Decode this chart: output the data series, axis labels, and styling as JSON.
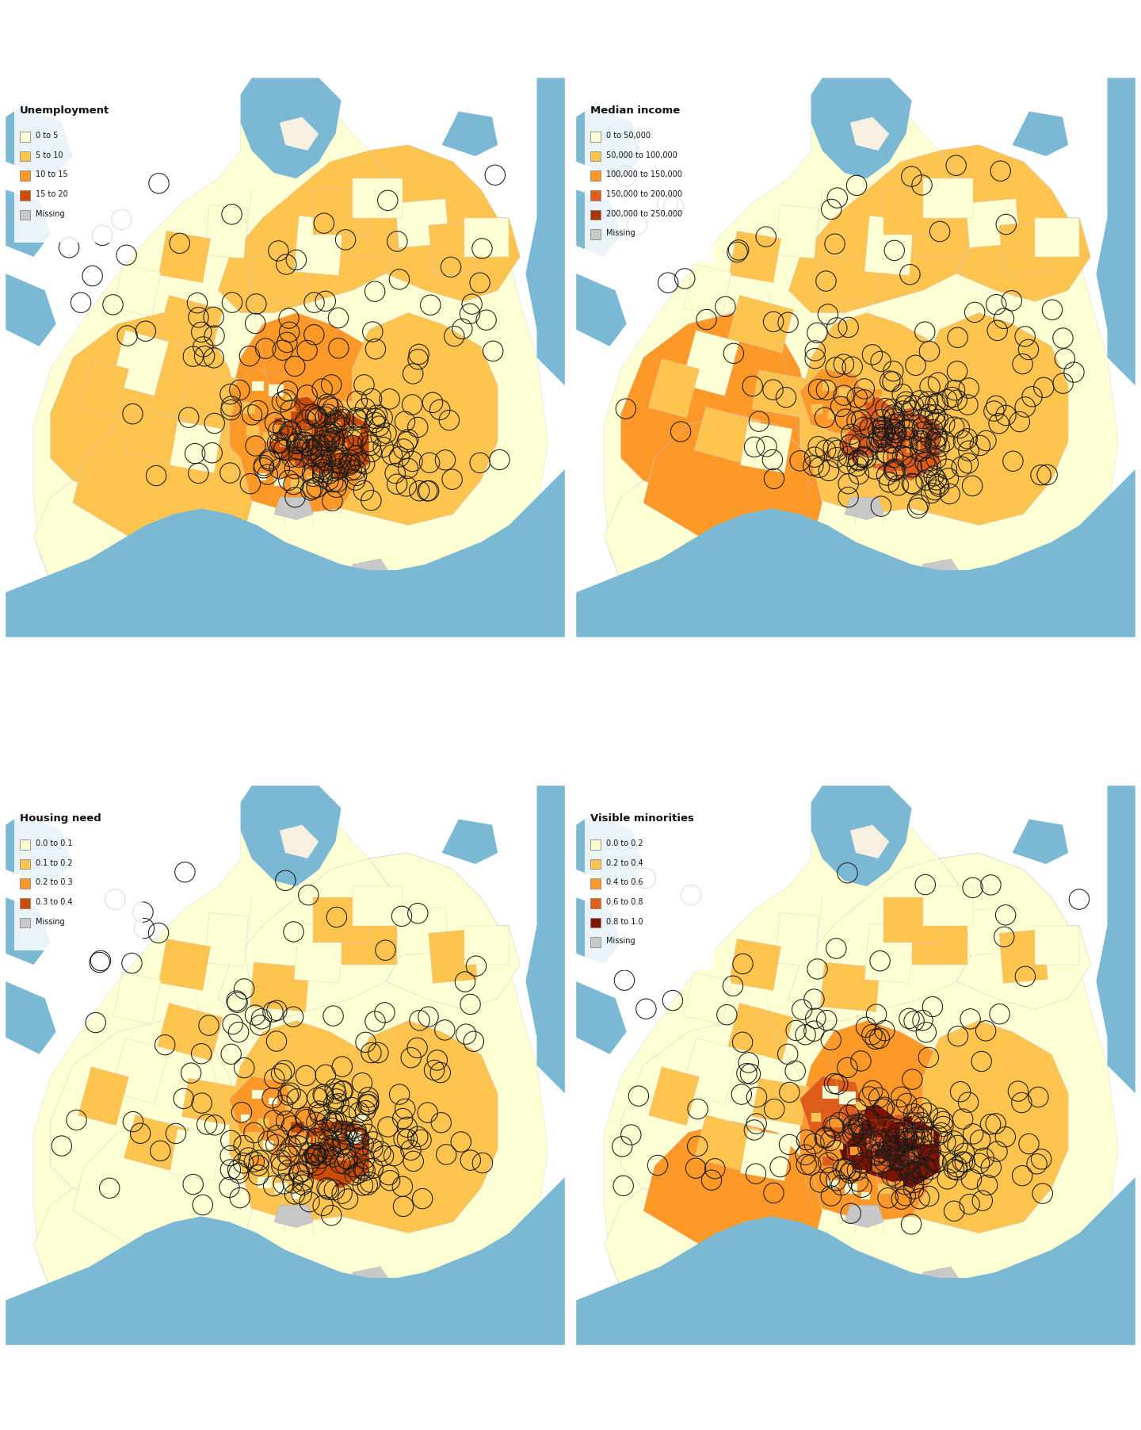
{
  "figsize": [
    14.4,
    18.04
  ],
  "dpi": 100,
  "background_color": "#ffffff",
  "water_color": "#7ab8d4",
  "outer_land_color": "#fffff0",
  "subplots": [
    {
      "legend_title": "Unemployment",
      "legend_labels": [
        "0 to 5",
        "5 to 10",
        "10 to 15",
        "15 to 20",
        "Missing"
      ],
      "legend_colors": [
        "#ffffd4",
        "#fec44f",
        "#fe9929",
        "#cc4c02",
        "#c8c8c8"
      ],
      "data_colors": [
        "#ffffd4",
        "#fec44f",
        "#fe9929",
        "#cc4c02"
      ],
      "region_scheme": "unemployment"
    },
    {
      "legend_title": "Median income",
      "legend_labels": [
        "0 to 50,000",
        "50,000 to 100,000",
        "100,000 to 150,000",
        "150,000 to 200,000",
        "200,000 to 250,000",
        "Missing"
      ],
      "legend_colors": [
        "#ffffd4",
        "#fec44f",
        "#fe9929",
        "#e05c1a",
        "#a63603",
        "#c8c8c8"
      ],
      "data_colors": [
        "#ffffd4",
        "#fec44f",
        "#fe9929",
        "#e05c1a",
        "#a63603"
      ],
      "region_scheme": "income"
    },
    {
      "legend_title": "Housing need",
      "legend_labels": [
        "0.0 to 0.1",
        "0.1 to 0.2",
        "0.2 to 0.3",
        "0.3 to 0.4",
        "Missing"
      ],
      "legend_colors": [
        "#ffffd4",
        "#fec44f",
        "#fe9929",
        "#cc4c02",
        "#c8c8c8"
      ],
      "data_colors": [
        "#ffffd4",
        "#fec44f",
        "#fe9929",
        "#cc4c02"
      ],
      "region_scheme": "housing"
    },
    {
      "legend_title": "Visible minorities",
      "legend_labels": [
        "0.0 to 0.2",
        "0.2 to 0.4",
        "0.4 to 0.6",
        "0.6 to 0.8",
        "0.8 to 1.0",
        "Missing"
      ],
      "legend_colors": [
        "#ffffd4",
        "#fec44f",
        "#fe9929",
        "#e05c1a",
        "#7f1500",
        "#c8c8c8"
      ],
      "data_colors": [
        "#ffffd4",
        "#fec44f",
        "#fe9929",
        "#e05c1a",
        "#7f1500"
      ],
      "region_scheme": "minorities"
    }
  ]
}
